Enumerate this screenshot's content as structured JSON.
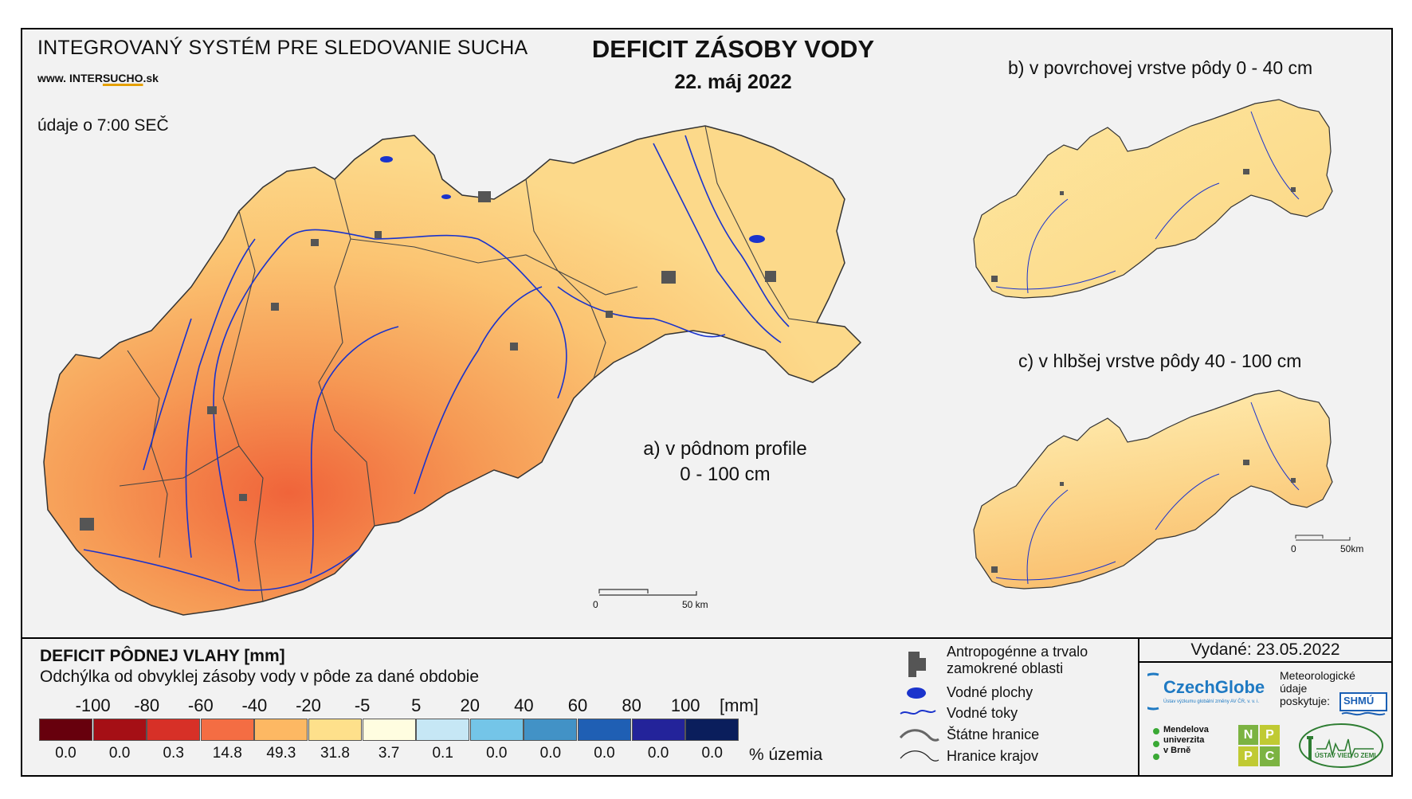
{
  "header": {
    "system_title": "INTEGROVANÝ SYSTÉM PRE SLEDOVANIE SUCHA",
    "website_prefix": "www. ",
    "website_part1": "INTER",
    "website_part2": "SUCHO",
    "website_suffix": ".sk",
    "time_note": "údaje o 7:00 SEČ",
    "title": "DEFICIT ZÁSOBY VODY",
    "date": "22. máj 2022"
  },
  "maps": {
    "main_label_line1": "a) v pôdnom profile",
    "main_label_line2": "0 - 100 cm",
    "inset_b_title": "b) v povrchovej vrstve pôdy 0 - 40 cm",
    "inset_c_title": "c) v hlbšej vrstve pôdy 40 - 100 cm",
    "main_scale": {
      "start": "0",
      "end": "50 km"
    },
    "inset_scale": {
      "start": "0",
      "end": "50km"
    }
  },
  "legend": {
    "title": "DEFICIT PÔDNEJ VLAHY [mm]",
    "subtitle": "Odchýlka od obvyklej zásoby vody v pôde za dané obdobie",
    "scale_labels": [
      "-100",
      "-80",
      "-60",
      "-40",
      "-20",
      "-5",
      "5",
      "20",
      "40",
      "60",
      "80",
      "100"
    ],
    "unit": "[mm]",
    "colors": [
      "#67000d",
      "#a50f15",
      "#d73027",
      "#f46d43",
      "#fdb863",
      "#fee08b",
      "#fffde0",
      "#c6e7f5",
      "#74c5e8",
      "#4292c6",
      "#1f5fb4",
      "#23239a",
      "#0a1e5c"
    ],
    "percentages": [
      "0.0",
      "0.0",
      "0.3",
      "14.8",
      "49.3",
      "31.8",
      "3.7",
      "0.1",
      "0.0",
      "0.0",
      "0.0",
      "0.0",
      "0.0"
    ],
    "percent_unit": "% územia"
  },
  "symbols": {
    "anthropogenic_line1": "Antropogénne a trvalo",
    "anthropogenic_line2": "zamokrené oblasti",
    "water_bodies": "Vodné plochy",
    "rivers": "Vodné toky",
    "state_borders": "Štátne hranice",
    "region_borders": "Hranice krajov"
  },
  "credits": {
    "issued": "Vydané: 23.05.2022",
    "czechglobe": "CzechGlobe",
    "czechglobe_sub": "Ústav výzkumu globální změny AV ČR, v. v. i.",
    "met_line1": "Meteorologické",
    "met_line2": "údaje",
    "met_line3": "poskytuje:",
    "shmu": "SHMÚ",
    "mendel_line1": "Mendelova",
    "mendel_line2": "univerzita",
    "mendel_line3": "v Brně",
    "nppc_letters": [
      "N",
      "P",
      "P",
      "C"
    ],
    "uvz": "ÚSTAV VIED O ZEMI"
  }
}
